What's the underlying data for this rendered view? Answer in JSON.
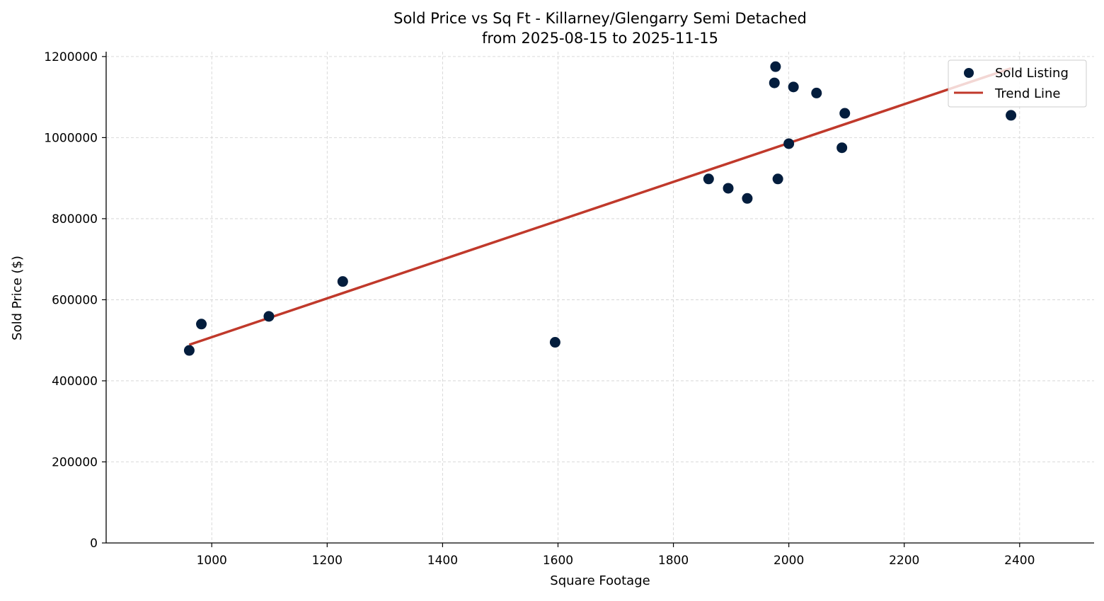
{
  "chart_data": {
    "type": "scatter",
    "title": "Sold Price vs Sq Ft - Killarney/Glengarry Semi Detached",
    "subtitle": "from 2025-08-15 to 2025-11-15",
    "xlabel": "Square Footage",
    "ylabel": "Sold Price ($)",
    "xlim": [
      817,
      2529
    ],
    "ylim": [
      0,
      1212000
    ],
    "xticks": [
      1000,
      1200,
      1400,
      1600,
      1800,
      2000,
      2200,
      2400
    ],
    "yticks": [
      0,
      200000,
      400000,
      600000,
      800000,
      1000000,
      1200000
    ],
    "grid": true,
    "legend_position": "top-right",
    "series": [
      {
        "name": "Sold Listing",
        "kind": "scatter",
        "color": "#031d3d",
        "points": [
          [
            961,
            475000
          ],
          [
            982,
            540000
          ],
          [
            1099,
            559000
          ],
          [
            1227,
            645000
          ],
          [
            1595,
            495000
          ],
          [
            1861,
            898000
          ],
          [
            1895,
            875000
          ],
          [
            1928,
            850000
          ],
          [
            1975,
            1135000
          ],
          [
            1977,
            1175000
          ],
          [
            1981,
            898000
          ],
          [
            2000,
            985000
          ],
          [
            2008,
            1125000
          ],
          [
            2048,
            1110000
          ],
          [
            2092,
            975000
          ],
          [
            2097,
            1060000
          ],
          [
            2385,
            1055000
          ]
        ]
      },
      {
        "name": "Trend Line",
        "kind": "line",
        "color": "#c0392b",
        "points": [
          [
            961,
            489000
          ],
          [
            2385,
            1171000
          ]
        ]
      }
    ]
  }
}
